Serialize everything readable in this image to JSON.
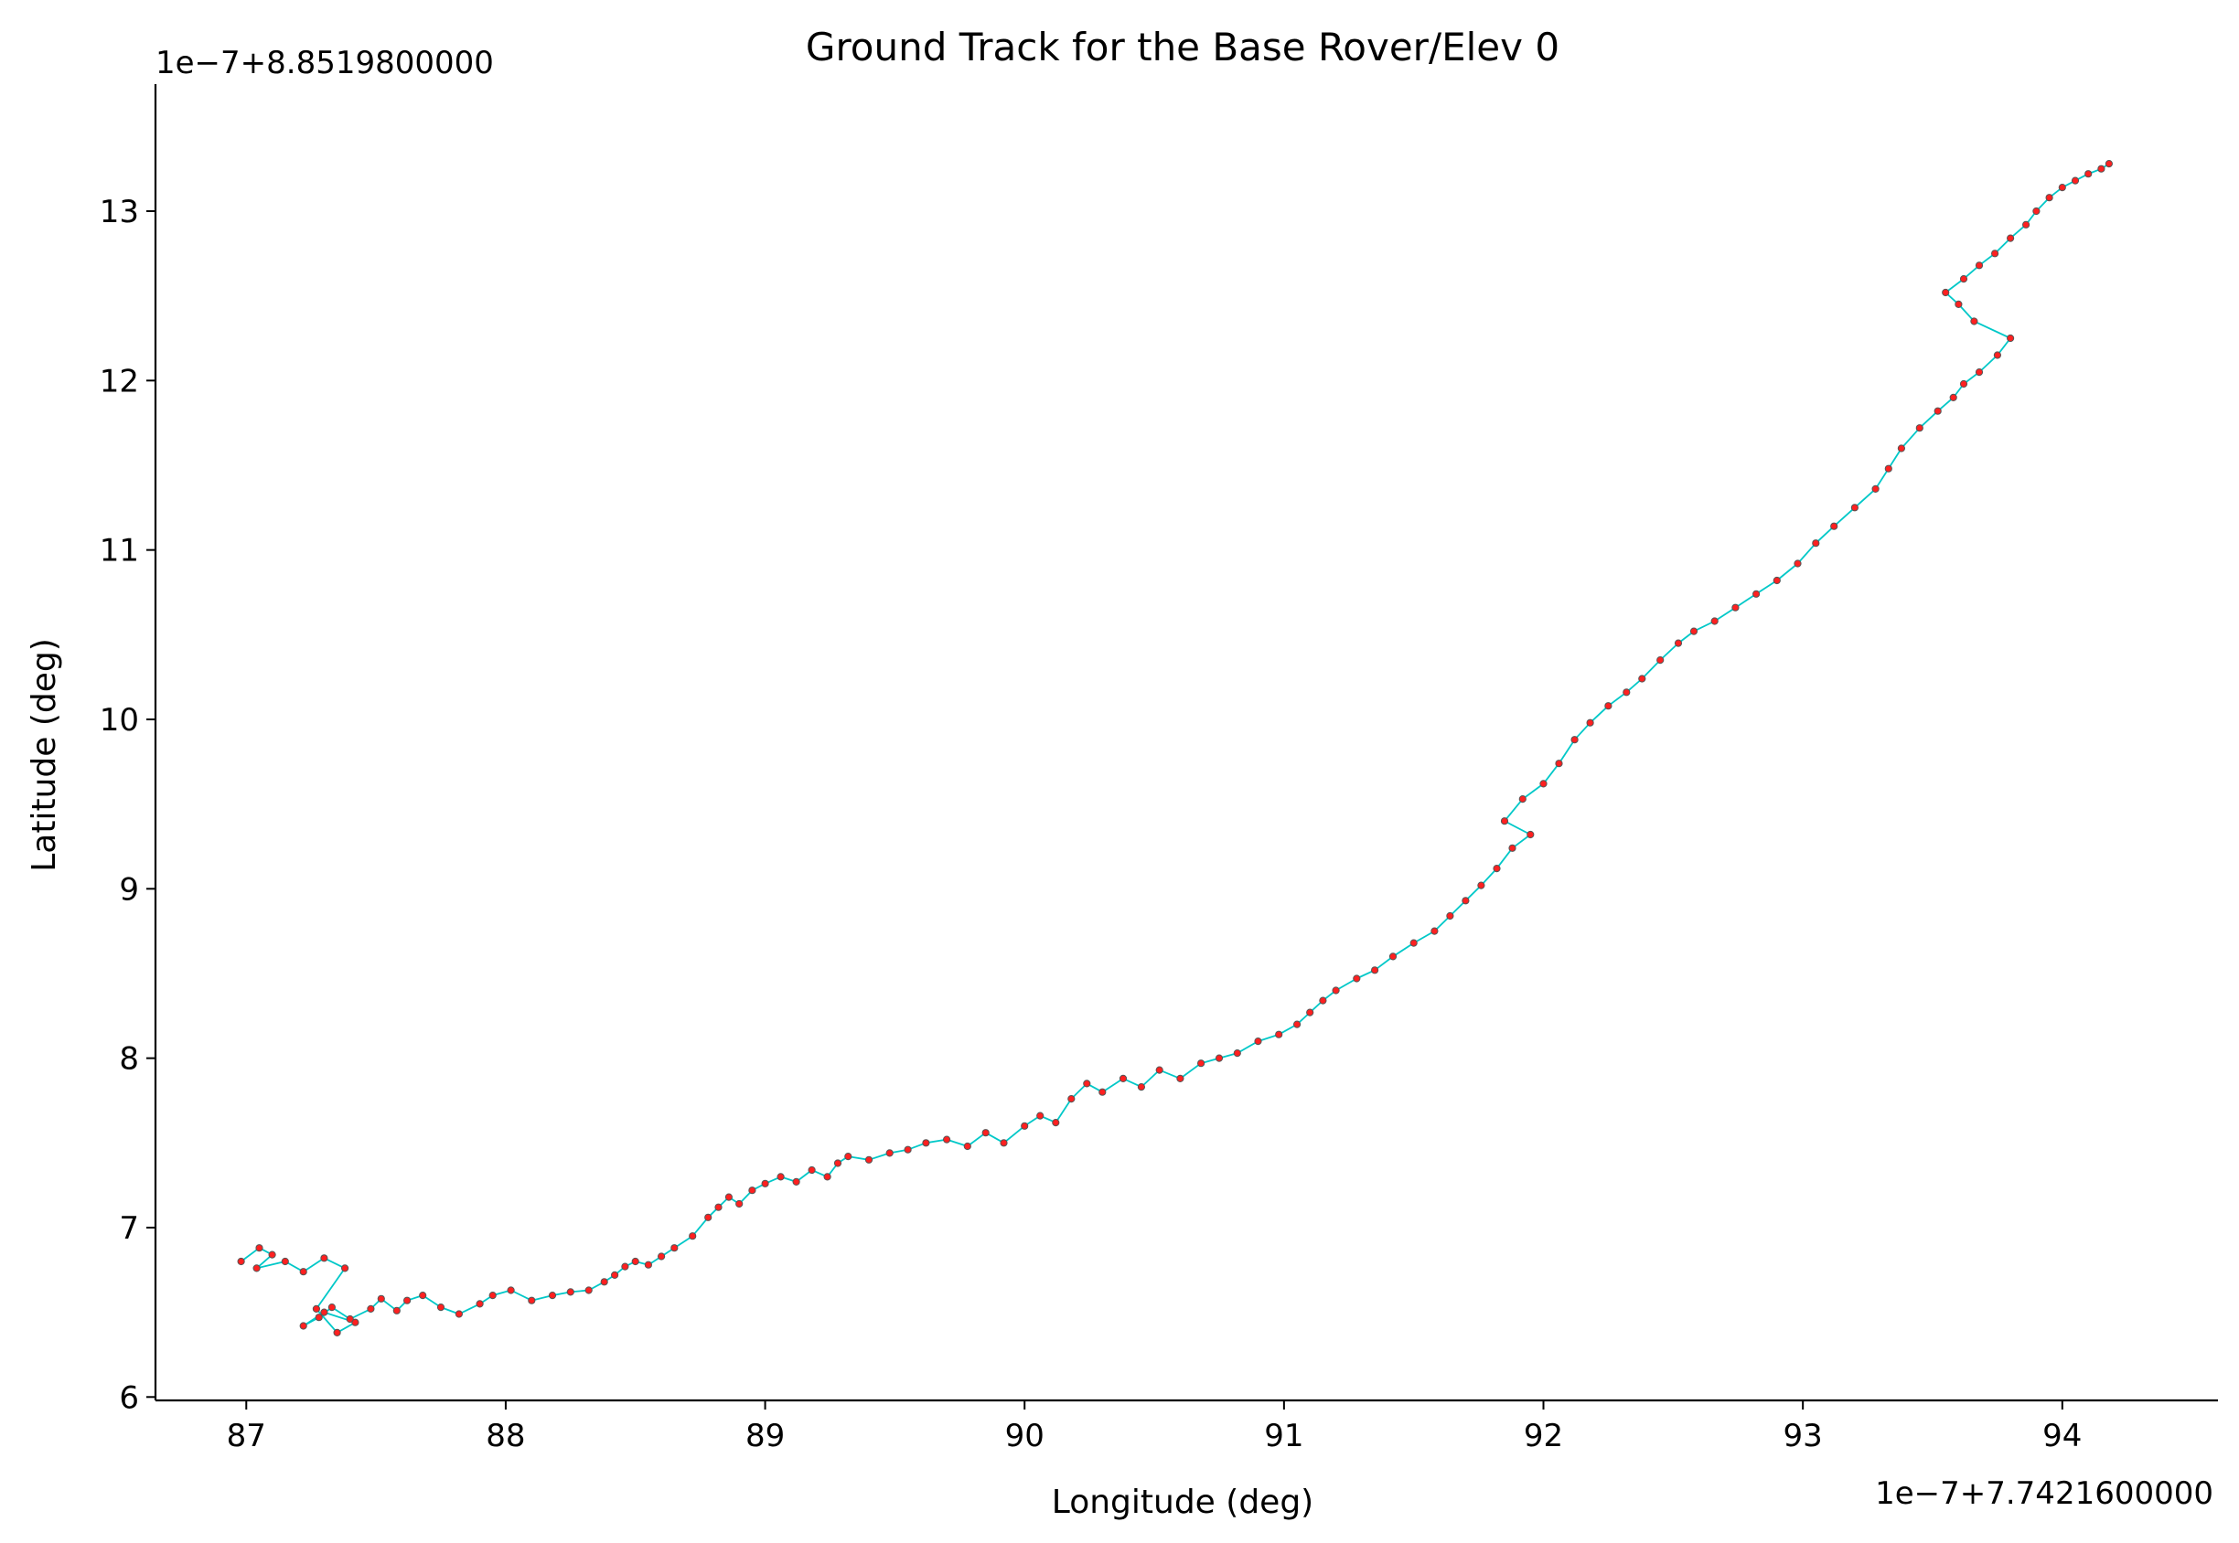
{
  "chart_data": {
    "type": "line",
    "title": "Ground Track for the Base Rover/Elev 0",
    "xlabel": "Longitude (deg)",
    "ylabel": "Latitude (deg)",
    "x_offset_label": "1e−7+7.7421600000",
    "y_offset_label": "1e−7+8.8519800000",
    "x_ticks": [
      "87",
      "88",
      "89",
      "90",
      "91",
      "92",
      "93",
      "94"
    ],
    "y_ticks": [
      "6",
      "7",
      "8",
      "9",
      "10",
      "11",
      "12",
      "13"
    ],
    "xlim": [
      86.65,
      94.6
    ],
    "ylim": [
      5.98,
      13.75
    ],
    "line_color": "#00c8c8",
    "marker_color": "#ff2020",
    "marker_edge_color": "#555555",
    "grid": false,
    "legend": "none",
    "series": [
      {
        "x": [
          86.98,
          87.05,
          87.1,
          87.04,
          87.15,
          87.22,
          87.3,
          87.38,
          87.27,
          87.35,
          87.42,
          87.3,
          87.22,
          87.28,
          87.33,
          87.4,
          87.48,
          87.52,
          87.58,
          87.62,
          87.68,
          87.75,
          87.82,
          87.9,
          87.95,
          88.02,
          88.1,
          88.18,
          88.25,
          88.32,
          88.38,
          88.42,
          88.46,
          88.5,
          88.55,
          88.6,
          88.65,
          88.72,
          88.78,
          88.82,
          88.86,
          88.9,
          88.95,
          89.0,
          89.06,
          89.12,
          89.18,
          89.24,
          89.28,
          89.32,
          89.4,
          89.48,
          89.55,
          89.62,
          89.7,
          89.78,
          89.85,
          89.92,
          90.0,
          90.06,
          90.12,
          90.18,
          90.24,
          90.3,
          90.38,
          90.45,
          90.52,
          90.6,
          90.68,
          90.75,
          90.82,
          90.9,
          90.98,
          91.05,
          91.1,
          91.15,
          91.2,
          91.28,
          91.35,
          91.42,
          91.5,
          91.58,
          91.64,
          91.7,
          91.76,
          91.82,
          91.88,
          91.95,
          91.85,
          91.92,
          92.0,
          92.06,
          92.12,
          92.18,
          92.25,
          92.32,
          92.38,
          92.45,
          92.52,
          92.58,
          92.66,
          92.74,
          92.82,
          92.9,
          92.98,
          93.05,
          93.12,
          93.2,
          93.28,
          93.33,
          93.38,
          93.45,
          93.52,
          93.58,
          93.62,
          93.68,
          93.75,
          93.8,
          93.66,
          93.6,
          93.55,
          93.62,
          93.68,
          93.74,
          93.8,
          93.86,
          93.9,
          93.95,
          94.0,
          94.05,
          94.1,
          94.15,
          94.18
        ],
        "y": [
          6.8,
          6.88,
          6.84,
          6.76,
          6.8,
          6.74,
          6.82,
          6.76,
          6.52,
          6.38,
          6.44,
          6.5,
          6.42,
          6.47,
          6.53,
          6.46,
          6.52,
          6.58,
          6.51,
          6.57,
          6.6,
          6.53,
          6.49,
          6.55,
          6.6,
          6.63,
          6.57,
          6.6,
          6.62,
          6.63,
          6.68,
          6.72,
          6.77,
          6.8,
          6.78,
          6.83,
          6.88,
          6.95,
          7.06,
          7.12,
          7.18,
          7.14,
          7.22,
          7.26,
          7.3,
          7.27,
          7.34,
          7.3,
          7.38,
          7.42,
          7.4,
          7.44,
          7.46,
          7.5,
          7.52,
          7.48,
          7.56,
          7.5,
          7.6,
          7.66,
          7.62,
          7.76,
          7.85,
          7.8,
          7.88,
          7.83,
          7.93,
          7.88,
          7.97,
          8.0,
          8.03,
          8.1,
          8.14,
          8.2,
          8.27,
          8.34,
          8.4,
          8.47,
          8.52,
          8.6,
          8.68,
          8.75,
          8.84,
          8.93,
          9.02,
          9.12,
          9.24,
          9.32,
          9.4,
          9.53,
          9.62,
          9.74,
          9.88,
          9.98,
          10.08,
          10.16,
          10.24,
          10.35,
          10.45,
          10.52,
          10.58,
          10.66,
          10.74,
          10.82,
          10.92,
          11.04,
          11.14,
          11.25,
          11.36,
          11.48,
          11.6,
          11.72,
          11.82,
          11.9,
          11.98,
          12.05,
          12.15,
          12.25,
          12.35,
          12.45,
          12.52,
          12.6,
          12.68,
          12.75,
          12.84,
          12.92,
          13.0,
          13.08,
          13.14,
          13.18,
          13.22,
          13.25,
          13.28
        ]
      }
    ]
  }
}
